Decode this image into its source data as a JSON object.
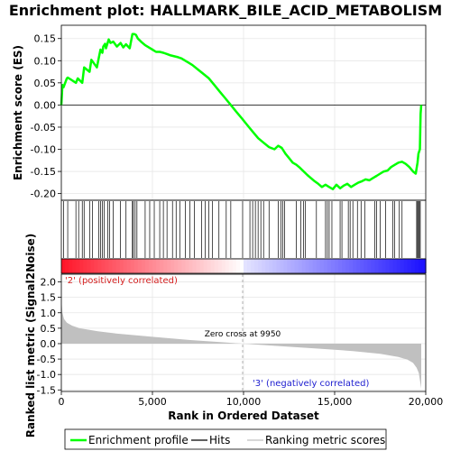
{
  "chart_data": {
    "type": "line",
    "title": "Enrichment plot: HALLMARK_BILE_ACID_METABOLISM",
    "top_panel": {
      "ylabel": "Enrichment score (ES)",
      "ylim": [
        -0.215,
        0.18
      ],
      "yticks": [
        0.15,
        0.1,
        0.05,
        0.0,
        -0.05,
        -0.1,
        -0.15,
        -0.2
      ],
      "ytick_labels": [
        "0.15",
        "0.10",
        "0.05",
        "0.00",
        "-0.05",
        "-0.10",
        "-0.15",
        "-0.20"
      ],
      "series": [
        {
          "name": "Enrichment profile",
          "color": "#00ff00",
          "x": [
            0,
            60,
            120,
            300,
            350,
            800,
            900,
            1150,
            1250,
            1550,
            1650,
            1950,
            2050,
            2150,
            2250,
            2300,
            2400,
            2450,
            2600,
            2700,
            2850,
            3050,
            3250,
            3400,
            3550,
            3750,
            3900,
            4000,
            4100,
            4200,
            4400,
            4600,
            4800,
            5000,
            5200,
            5400,
            5600,
            5800,
            6000,
            6200,
            6400,
            6600,
            6800,
            7000,
            7200,
            7500,
            7800,
            8100,
            8400,
            8700,
            9000,
            9300,
            9600,
            9900,
            10200,
            10500,
            10800,
            11100,
            11400,
            11700,
            11900,
            12100,
            12300,
            12500,
            12700,
            12900,
            13100,
            13300,
            13500,
            13700,
            13900,
            14100,
            14300,
            14500,
            14700,
            14900,
            15100,
            15300,
            15500,
            15700,
            15900,
            16100,
            16300,
            16500,
            16700,
            16900,
            17100,
            17300,
            17500,
            17700,
            17900,
            18100,
            18300,
            18500,
            18700,
            18900,
            19100,
            19300,
            19450,
            19550,
            19600,
            19680,
            19700,
            19720,
            19750
          ],
          "y": [
            0.0,
            0.045,
            0.04,
            0.06,
            0.062,
            0.05,
            0.06,
            0.05,
            0.085,
            0.075,
            0.102,
            0.085,
            0.105,
            0.125,
            0.118,
            0.132,
            0.138,
            0.128,
            0.148,
            0.14,
            0.143,
            0.132,
            0.14,
            0.13,
            0.137,
            0.128,
            0.16,
            0.16,
            0.158,
            0.15,
            0.142,
            0.135,
            0.13,
            0.125,
            0.12,
            0.12,
            0.118,
            0.115,
            0.112,
            0.11,
            0.108,
            0.105,
            0.1,
            0.095,
            0.09,
            0.08,
            0.07,
            0.06,
            0.045,
            0.03,
            0.015,
            0.0,
            -0.015,
            -0.03,
            -0.045,
            -0.06,
            -0.075,
            -0.085,
            -0.095,
            -0.1,
            -0.092,
            -0.097,
            -0.11,
            -0.12,
            -0.13,
            -0.135,
            -0.142,
            -0.15,
            -0.158,
            -0.165,
            -0.172,
            -0.178,
            -0.185,
            -0.18,
            -0.185,
            -0.19,
            -0.18,
            -0.188,
            -0.182,
            -0.178,
            -0.185,
            -0.18,
            -0.175,
            -0.172,
            -0.168,
            -0.17,
            -0.165,
            -0.16,
            -0.155,
            -0.15,
            -0.148,
            -0.14,
            -0.135,
            -0.13,
            -0.128,
            -0.133,
            -0.14,
            -0.15,
            -0.155,
            -0.13,
            -0.11,
            -0.1,
            -0.06,
            -0.02,
            0.0
          ]
        }
      ]
    },
    "hits_rank": [
      120,
      350,
      800,
      950,
      1150,
      1250,
      1550,
      1700,
      2050,
      2150,
      2250,
      2350,
      2550,
      2650,
      2850,
      3250,
      3550,
      3900,
      3950,
      4050,
      4150,
      4600,
      4850,
      5100,
      5400,
      5600,
      5800,
      6100,
      6300,
      6500,
      6800,
      7050,
      7300,
      7700,
      7900,
      8100,
      8300,
      8650,
      9050,
      9300,
      9950,
      10350,
      10500,
      10650,
      10800,
      10950,
      11100,
      11400,
      11900,
      12050,
      12150,
      12250,
      12900,
      13150,
      13300,
      13400,
      14000,
      14500,
      14600,
      14700,
      14850,
      15300,
      15400,
      15750,
      15850,
      16000,
      16250,
      16450,
      16650,
      17200,
      17300,
      17500,
      17800,
      18200,
      18300,
      18550,
      18700,
      19500,
      19550,
      19600,
      19650,
      19700
    ],
    "ranked_metric": {
      "ylabel": "Ranked list metric (Signal2Noise)",
      "ylim": [
        -1.55,
        2.25
      ],
      "yticks": [
        2.0,
        1.5,
        1.0,
        0.5,
        0.0,
        -0.5,
        -1.0,
        -1.5
      ],
      "ytick_labels": [
        "2.0",
        "1.5",
        "1.0",
        "0.5",
        "0.0",
        "-0.5",
        "-1.0",
        "-1.5"
      ],
      "x": [
        0,
        20,
        60,
        150,
        300,
        600,
        1000,
        2000,
        3000,
        5000,
        7000,
        9950,
        12000,
        14000,
        16000,
        17500,
        18500,
        19000,
        19300,
        19500,
        19620,
        19700,
        19750
      ],
      "y": [
        2.05,
        1.3,
        1.0,
        0.8,
        0.68,
        0.58,
        0.5,
        0.4,
        0.33,
        0.22,
        0.12,
        0.0,
        -0.08,
        -0.16,
        -0.24,
        -0.33,
        -0.43,
        -0.52,
        -0.62,
        -0.78,
        -0.95,
        -1.25,
        -1.45
      ],
      "fill_color": "#c0c0c0",
      "zero_cross_label": "Zero cross at 9950",
      "zero_cross_rank": 9950,
      "positive_label": "'2' (positively correlated)",
      "negative_label": "'3' (negatively correlated)"
    },
    "xlabel": "Rank in Ordered Dataset",
    "xlim": [
      0,
      20000
    ],
    "xticks": [
      0,
      5000,
      10000,
      15000,
      20000
    ],
    "xtick_labels": [
      "0",
      "5,000",
      "10,000",
      "15,000",
      "20,000"
    ],
    "legend": {
      "placement": "bottom",
      "items": [
        {
          "label": "Enrichment profile",
          "color": "#00ff00",
          "kind": "thick-line"
        },
        {
          "label": "Hits",
          "color": "#000000",
          "kind": "line"
        },
        {
          "label": "Ranking metric scores",
          "color": "#c0c0c0",
          "kind": "line"
        }
      ]
    },
    "grid": true
  }
}
